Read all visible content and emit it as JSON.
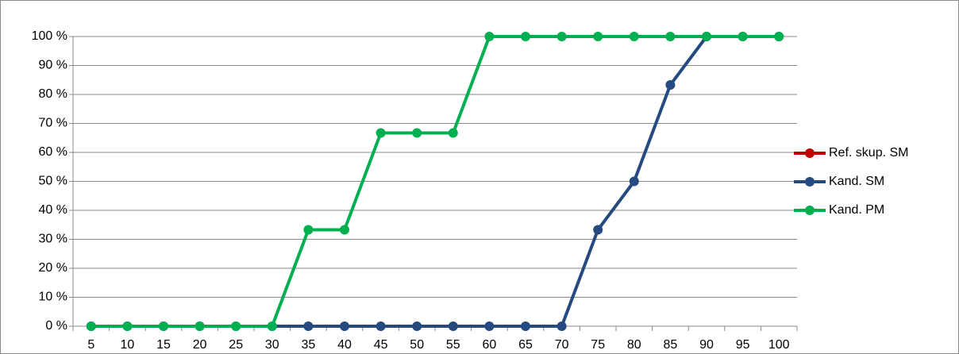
{
  "chart_data": {
    "type": "line",
    "categories": [
      "5",
      "10",
      "15",
      "20",
      "25",
      "30",
      "35",
      "40",
      "45",
      "50",
      "55",
      "60",
      "65",
      "70",
      "75",
      "80",
      "85",
      "90",
      "95",
      "100"
    ],
    "series": [
      {
        "name": "Ref. skup. SM",
        "color": "#c00000",
        "values": [
          null,
          null,
          null,
          null,
          null,
          null,
          null,
          null,
          null,
          null,
          null,
          null,
          null,
          null,
          null,
          null,
          null,
          null,
          null,
          null
        ]
      },
      {
        "name": "Kand. SM",
        "color": "#254a7f",
        "values": [
          0,
          0,
          0,
          0,
          0,
          0,
          0,
          0,
          0,
          0,
          0,
          0,
          0,
          0,
          33.3,
          50,
          83.3,
          100,
          100,
          100
        ]
      },
      {
        "name": "Kand. PM",
        "color": "#00b050",
        "values": [
          0,
          0,
          0,
          0,
          0,
          0,
          33.3,
          33.3,
          66.7,
          66.7,
          66.7,
          100,
          100,
          100,
          100,
          100,
          100,
          100,
          100,
          100
        ]
      }
    ],
    "ylim": [
      0,
      100
    ],
    "yticks": [
      {
        "value": 0,
        "label": "0 %"
      },
      {
        "value": 10,
        "label": "10 %"
      },
      {
        "value": 20,
        "label": "20 %"
      },
      {
        "value": 30,
        "label": "30 %"
      },
      {
        "value": 40,
        "label": "40 %"
      },
      {
        "value": 50,
        "label": "50 %"
      },
      {
        "value": 60,
        "label": "60 %"
      },
      {
        "value": 70,
        "label": "70 %"
      },
      {
        "value": 80,
        "label": "80 %"
      },
      {
        "value": 90,
        "label": "90 %"
      },
      {
        "value": 100,
        "label": "100 %"
      }
    ],
    "grid": true,
    "legend": "right"
  }
}
